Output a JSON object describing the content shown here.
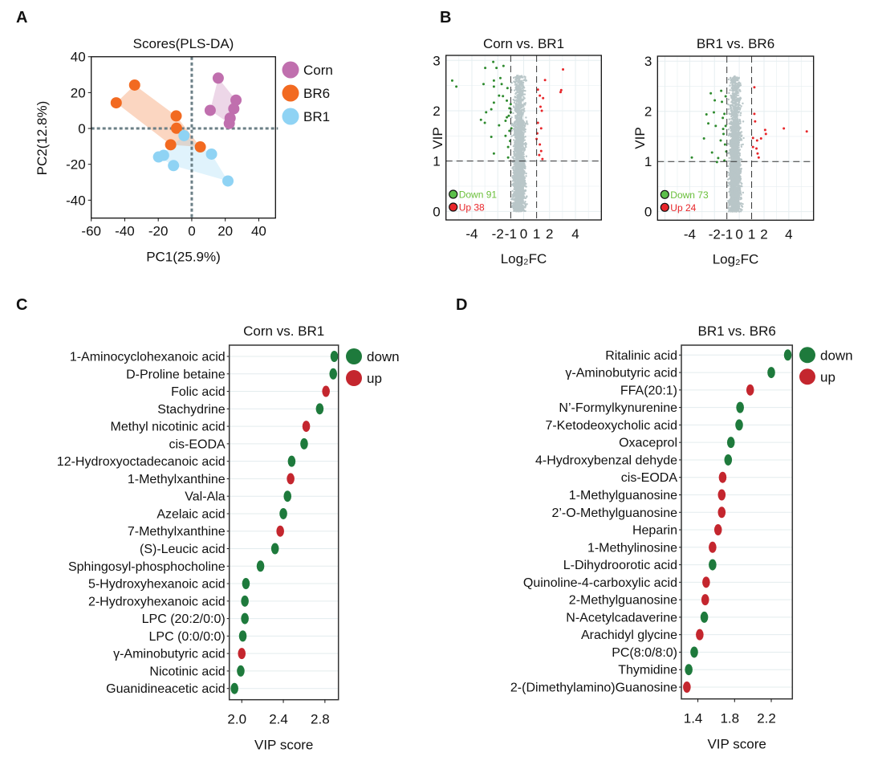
{
  "panel_letters": [
    "A",
    "B",
    "C",
    "D"
  ],
  "colors": {
    "corn": "#c06fae",
    "br6": "#f26a21",
    "br1": "#8fd3f4",
    "volcano_down": "#2e8b2e",
    "volcano_up": "#e8262a",
    "volcano_ns": "#b9c6c8",
    "legend_down_text": "#6abf3a",
    "legend_up_text": "#e8262a",
    "vip_down": "#1e7a3c",
    "vip_up": "#c4262e"
  },
  "chart_data": [
    {
      "panel": "A",
      "type": "scatter",
      "title": "Scores(PLS-DA)",
      "xlabel": "PC1(25.9%)",
      "ylabel": "PC2(12.8%)",
      "xlim": [
        -60,
        50
      ],
      "ylim": [
        -50,
        40
      ],
      "xticks": [
        -60,
        -40,
        -20,
        0,
        20,
        40
      ],
      "yticks": [
        -40,
        -20,
        0,
        20,
        40
      ],
      "reference_lines": {
        "x": 0,
        "y": 0,
        "style": "dotted"
      },
      "convex_hulls": true,
      "legend_position": "right",
      "series": [
        {
          "name": "Corn",
          "color_key": "corn",
          "points": [
            [
              15.8,
              28.1
            ],
            [
              26.4,
              15.8
            ],
            [
              25.1,
              11.0
            ],
            [
              11.0,
              10.1
            ],
            [
              22.9,
              5.8
            ],
            [
              22.4,
              2.8
            ]
          ]
        },
        {
          "name": "BR6",
          "color_key": "br6",
          "points": [
            [
              -34.1,
              24.2
            ],
            [
              -45.1,
              14.3
            ],
            [
              -9.3,
              7.0
            ],
            [
              -9.1,
              0.1
            ],
            [
              -12.6,
              -9.1
            ],
            [
              5.1,
              -10.3
            ]
          ]
        },
        {
          "name": "BR1",
          "color_key": "br1",
          "points": [
            [
              -4.6,
              -4.0
            ],
            [
              -19.8,
              -15.9
            ],
            [
              -16.8,
              -15.0
            ],
            [
              -10.9,
              -20.7
            ],
            [
              11.8,
              -14.3
            ],
            [
              21.6,
              -29.3
            ]
          ]
        }
      ]
    },
    {
      "panel": "B",
      "type": "scatter",
      "title": "Corn vs. BR1",
      "xlabel": "Log₂FC",
      "ylabel": "VIP",
      "xlim": [
        -6,
        6
      ],
      "ylim": [
        -0.17,
        3.1
      ],
      "xticks": [
        "-4",
        "-2",
        "-1",
        "0",
        "1",
        "2",
        "4"
      ],
      "xtick_values": [
        -4,
        -2,
        -1,
        0,
        1,
        2,
        4
      ],
      "yticks": [
        0,
        1,
        2,
        3
      ],
      "grid": true,
      "thresholds": {
        "log2fc": [
          -1,
          1
        ],
        "vip": 1
      },
      "legend": [
        {
          "label": "Down 91",
          "key": "down"
        },
        {
          "label": "Up 38",
          "key": "up"
        }
      ],
      "down_points": [
        [
          -5.52,
          2.6
        ],
        [
          -5.2,
          2.48
        ],
        [
          -2.97,
          2.85
        ],
        [
          -2.35,
          2.97
        ],
        [
          -1.56,
          2.89
        ],
        [
          -3.3,
          1.82
        ],
        [
          -2.9,
          1.97
        ],
        [
          -2.5,
          1.48
        ],
        [
          -2.3,
          1.15
        ],
        [
          -3.1,
          2.53
        ],
        [
          -2.3,
          2.48
        ],
        [
          -1.7,
          2.53
        ],
        [
          -1.25,
          2.45
        ],
        [
          -1.0,
          2.13
        ],
        [
          -2.5,
          2.03
        ],
        [
          -3.0,
          1.76
        ],
        [
          -1.9,
          1.71
        ],
        [
          -1.4,
          1.5
        ],
        [
          -1.2,
          1.28
        ],
        [
          -1.3,
          1.87
        ],
        [
          -2.3,
          2.6
        ],
        [
          -1.6,
          2.29
        ],
        [
          -1.0,
          1.97
        ],
        [
          -0.95,
          1.65
        ],
        [
          -1.2,
          1.07
        ],
        [
          -2.3,
          2.16
        ],
        [
          -1.8,
          2.65
        ],
        [
          -1.1,
          2.05
        ],
        [
          -1.15,
          1.9
        ],
        [
          -1.05,
          1.4
        ],
        [
          -1.3,
          2.2
        ],
        [
          -1.1,
          1.6
        ],
        [
          -1.4,
          1.8
        ],
        [
          -2.1,
          2.85
        ],
        [
          -1.9,
          2.3
        ]
      ],
      "up_points": [
        [
          3.04,
          2.82
        ],
        [
          1.65,
          2.61
        ],
        [
          2.9,
          2.41
        ],
        [
          2.85,
          2.37
        ],
        [
          1.1,
          2.42
        ],
        [
          1.25,
          2.3
        ],
        [
          1.5,
          2.25
        ],
        [
          1.3,
          2.08
        ],
        [
          1.4,
          2.0
        ],
        [
          1.1,
          1.76
        ],
        [
          1.35,
          1.65
        ],
        [
          1.0,
          1.44
        ],
        [
          1.25,
          1.33
        ],
        [
          1.35,
          1.2
        ],
        [
          1.2,
          1.12
        ],
        [
          1.45,
          1.04
        ],
        [
          1.05,
          1.55
        ]
      ]
    },
    {
      "panel": "B",
      "type": "scatter",
      "title": "BR1 vs. BR6",
      "xlabel": "Log₂FC",
      "ylabel": "VIP",
      "xlim": [
        -6.6,
        6
      ],
      "ylim": [
        -0.17,
        3.1
      ],
      "xticks": [
        "-4",
        "-2",
        "-1",
        "0",
        "1",
        "2",
        "4"
      ],
      "xtick_values": [
        -4,
        -2,
        -1,
        0,
        1,
        2,
        4
      ],
      "yticks": [
        0,
        1,
        2,
        3
      ],
      "grid": true,
      "thresholds": {
        "log2fc": [
          -1,
          1
        ],
        "vip": 1
      },
      "legend": [
        {
          "label": "Down 73",
          "key": "down"
        },
        {
          "label": "Up 24",
          "key": "up"
        }
      ],
      "down_points": [
        [
          -3.83,
          1.08
        ],
        [
          -2.85,
          1.46
        ],
        [
          -2.3,
          2.36
        ],
        [
          -1.98,
          2.22
        ],
        [
          -1.46,
          2.41
        ],
        [
          -2.65,
          1.94
        ],
        [
          -2.05,
          1.98
        ],
        [
          -1.9,
          1.71
        ],
        [
          -2.5,
          1.76
        ],
        [
          -2.2,
          1.18
        ],
        [
          -1.7,
          1.07
        ],
        [
          -1.33,
          1.87
        ],
        [
          -1.27,
          1.55
        ],
        [
          -1.15,
          1.34
        ],
        [
          -1.4,
          2.19
        ],
        [
          -1.2,
          1.02
        ],
        [
          -1.1,
          2.3
        ],
        [
          -1.5,
          1.42
        ],
        [
          -1.1,
          1.71
        ],
        [
          -1.8,
          0.99
        ],
        [
          -1.2,
          1.95
        ],
        [
          -1.05,
          1.2
        ],
        [
          -1.3,
          1.65
        ]
      ],
      "up_points": [
        [
          1.22,
          2.48
        ],
        [
          1.22,
          1.95
        ],
        [
          1.28,
          1.8
        ],
        [
          2.09,
          1.63
        ],
        [
          2.15,
          1.55
        ],
        [
          3.6,
          1.66
        ],
        [
          5.45,
          1.6
        ],
        [
          1.11,
          1.47
        ],
        [
          1.76,
          1.46
        ],
        [
          1.44,
          1.42
        ],
        [
          1.11,
          1.29
        ],
        [
          1.39,
          1.26
        ],
        [
          1.48,
          1.16
        ],
        [
          1.57,
          1.08
        ]
      ]
    },
    {
      "panel": "C",
      "type": "scatter",
      "title": "Corn vs. BR1",
      "xlabel": "VIP score",
      "xlim": [
        1.88,
        2.93
      ],
      "xticks": [
        2.0,
        2.4,
        2.8
      ],
      "xtick_labels": [
        "2.0",
        "2.4",
        "2.8"
      ],
      "legend": [
        {
          "label": "down",
          "key": "down"
        },
        {
          "label": "up",
          "key": "up"
        }
      ],
      "categories": [
        "1-Aminocyclohexanoic acid",
        "D-Proline betaine",
        "Folic acid",
        "Stachydrine",
        "Methyl nicotinic acid",
        "cis-EODA",
        "12-Hydroxyoctadecanoic acid",
        "1-Methylxanthine",
        "Val-Ala",
        "Azelaic acid",
        "7-Methylxanthine",
        "(S)-Leucic acid",
        "Sphingosyl-phosphocholine",
        "5-Hydroxyhexanoic acid",
        "2-Hydroxyhexanoic acid",
        "LPC (20:2/0:0)",
        "LPC (0:0/0:0)",
        "γ-Aminobutyric acid",
        "Nicotinic acid",
        "Guanidineacetic acid"
      ],
      "values": [
        2.89,
        2.88,
        2.81,
        2.75,
        2.62,
        2.6,
        2.48,
        2.47,
        2.44,
        2.4,
        2.37,
        2.32,
        2.18,
        2.04,
        2.03,
        2.03,
        2.01,
        2.0,
        1.99,
        1.93
      ],
      "regulation": [
        "down",
        "down",
        "up",
        "down",
        "up",
        "down",
        "down",
        "up",
        "down",
        "down",
        "up",
        "down",
        "down",
        "down",
        "down",
        "down",
        "down",
        "up",
        "down",
        "down"
      ]
    },
    {
      "panel": "D",
      "type": "scatter",
      "title": "BR1 vs. BR6",
      "xlabel": "VIP score",
      "xlim": [
        1.22,
        2.43
      ],
      "xticks": [
        1.4,
        1.8,
        2.2
      ],
      "xtick_labels": [
        "1.4",
        "1.8",
        "2.2"
      ],
      "legend": [
        {
          "label": "down",
          "key": "down"
        },
        {
          "label": "up",
          "key": "up"
        }
      ],
      "categories": [
        "Ritalinic acid",
        "γ-Aminobutyric acid",
        "FFA(20:1)",
        "N’-Formylkynurenine",
        "7-Ketodeoxycholic acid",
        "Oxaceprol",
        "4-Hydroxybenzal dehyde",
        "cis-EODA",
        "1-Methylguanosine",
        "2’-O-Methylguanosine",
        "Heparin",
        "1-Methylinosine",
        "L-Dihydroorotic acid",
        "Quinoline-4-carboxylic acid",
        "2-Methylguanosine",
        "N-Acetylcadaverine",
        "Arachidyl glycine",
        "PC(8:0/8:0)",
        "Thymidine",
        "2-(Dimethylamino)Guanosine"
      ],
      "values": [
        2.38,
        2.2,
        1.97,
        1.86,
        1.85,
        1.76,
        1.73,
        1.67,
        1.66,
        1.66,
        1.62,
        1.56,
        1.56,
        1.49,
        1.48,
        1.47,
        1.42,
        1.36,
        1.3,
        1.28
      ],
      "regulation": [
        "down",
        "down",
        "up",
        "down",
        "down",
        "down",
        "down",
        "up",
        "up",
        "up",
        "up",
        "up",
        "down",
        "up",
        "up",
        "down",
        "up",
        "down",
        "down",
        "up"
      ]
    }
  ]
}
